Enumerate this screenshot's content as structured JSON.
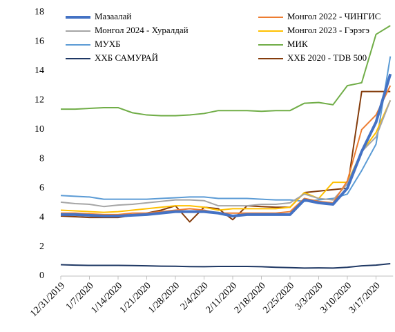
{
  "chart_data": {
    "type": "line",
    "x": [
      "12/31/2019",
      null,
      "1/7/2020",
      null,
      "1/14/2020",
      null,
      "1/21/2020",
      null,
      "1/28/2020",
      null,
      "2/4/2020",
      null,
      "2/11/2020",
      null,
      "2/18/2020",
      null,
      "2/25/2020",
      null,
      "3/3/2020",
      null,
      "3/10/2020",
      null,
      "3/17/2020",
      null
    ],
    "ylim": [
      0,
      18
    ],
    "yticks": [
      0,
      2,
      4,
      6,
      8,
      10,
      12,
      14,
      16,
      18
    ],
    "legend": "top",
    "series": [
      {
        "name": "Мазаалай",
        "color": "#4472c4",
        "values": [
          4.2,
          4.2,
          4.15,
          4.1,
          4.1,
          4.15,
          4.2,
          4.3,
          4.4,
          4.4,
          4.4,
          4.3,
          4.1,
          4.2,
          4.2,
          4.2,
          4.2,
          5.2,
          5.0,
          4.9,
          6.0,
          8.5,
          10.5,
          13.8
        ]
      },
      {
        "name": "Монгол 2022 - ЧИНГИС",
        "color": "#ed7d31",
        "values": [
          4.3,
          4.3,
          4.25,
          4.2,
          4.2,
          4.3,
          4.3,
          4.4,
          4.5,
          4.6,
          4.5,
          4.3,
          4.3,
          4.3,
          4.3,
          4.3,
          4.4,
          5.3,
          5.1,
          5.0,
          6.5,
          10.0,
          11.0,
          13.0
        ]
      },
      {
        "name": "Монгол 2024 - Хуралдай",
        "color": "#a5a5a5",
        "values": [
          5.05,
          4.95,
          4.9,
          4.75,
          4.85,
          4.9,
          5.0,
          5.1,
          5.2,
          5.2,
          5.15,
          4.8,
          4.8,
          4.8,
          4.9,
          4.9,
          5.0,
          5.6,
          5.3,
          5.2,
          6.3,
          8.5,
          9.5,
          12.0
        ]
      },
      {
        "name": "Монгол 2023 - Гэрэгэ",
        "color": "#ffc000",
        "values": [
          4.5,
          4.45,
          4.4,
          4.35,
          4.4,
          4.5,
          4.6,
          4.7,
          4.8,
          4.8,
          4.7,
          4.5,
          4.6,
          4.6,
          4.6,
          4.6,
          4.7,
          5.7,
          5.3,
          6.4,
          6.4,
          8.5,
          9.8,
          12.0
        ]
      },
      {
        "name": "МУХБ",
        "color": "#5b9bd5",
        "values": [
          5.5,
          5.45,
          5.4,
          5.25,
          5.25,
          5.25,
          5.25,
          5.3,
          5.35,
          5.4,
          5.4,
          5.3,
          5.3,
          5.3,
          5.25,
          5.2,
          5.2,
          5.1,
          5.2,
          5.3,
          5.6,
          7.2,
          9.0,
          15.0
        ]
      },
      {
        "name": "МИК",
        "color": "#70ad47",
        "values": [
          11.4,
          11.4,
          11.45,
          11.5,
          11.5,
          11.15,
          11.0,
          10.95,
          10.95,
          11.0,
          11.1,
          11.3,
          11.3,
          11.3,
          11.25,
          11.3,
          11.3,
          11.8,
          11.85,
          11.7,
          13.0,
          13.2,
          16.5,
          17.1
        ]
      },
      {
        "name": "ХХБ САМУРАЙ",
        "color": "#1f3864",
        "values": [
          0.78,
          0.75,
          0.73,
          0.73,
          0.73,
          0.72,
          0.7,
          0.68,
          0.67,
          0.65,
          0.64,
          0.66,
          0.66,
          0.66,
          0.64,
          0.6,
          0.58,
          0.55,
          0.56,
          0.55,
          0.6,
          0.7,
          0.75,
          0.85
        ]
      },
      {
        "name": "ХХБ 2020 - TDB 500",
        "color": "#843c0c",
        "values": [
          4.1,
          4.05,
          4.0,
          4.0,
          4.0,
          4.15,
          4.3,
          4.5,
          4.8,
          3.7,
          4.7,
          4.6,
          3.85,
          4.8,
          4.75,
          4.7,
          4.7,
          5.7,
          5.8,
          5.9,
          6.0,
          12.6,
          12.6,
          12.6
        ]
      }
    ]
  }
}
